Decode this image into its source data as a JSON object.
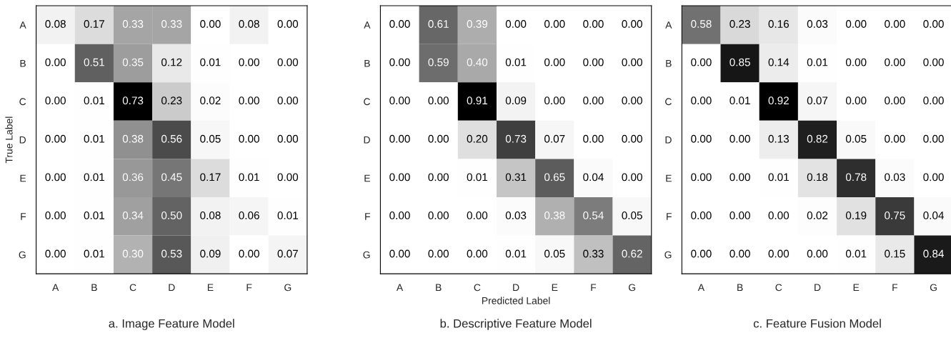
{
  "chart_data": [
    {
      "type": "heatmap",
      "ylabel": "True Label",
      "categories": [
        "A",
        "B",
        "C",
        "D",
        "E",
        "F",
        "G"
      ],
      "y_categories": [
        "A",
        "B",
        "C",
        "D",
        "E",
        "F",
        "G"
      ],
      "data_labels": true,
      "annotations": [
        "a. Image Feature Model"
      ],
      "cell_labels": [
        [
          "0.08",
          "0.17",
          "0.33",
          "0.33",
          "0.00",
          "0.08",
          "0.00"
        ],
        [
          "0.00",
          "0.51",
          "0.35",
          "0.12",
          "0.01",
          "0.00",
          "0.00"
        ],
        [
          "0.00",
          "0.01",
          "0.73",
          "0.23",
          "0.02",
          "0.00",
          "0.00"
        ],
        [
          "0.00",
          "0.01",
          "0.38",
          "0.56",
          "0.05",
          "0.00",
          "0.00"
        ],
        [
          "0.00",
          "0.01",
          "0.36",
          "0.45",
          "0.17",
          "0.01",
          "0.00"
        ],
        [
          "0.00",
          "0.01",
          "0.34",
          "0.50",
          "0.08",
          "0.06",
          "0.01"
        ],
        [
          "0.00",
          "0.01",
          "0.30",
          "0.53",
          "0.09",
          "0.00",
          "0.07"
        ]
      ],
      "cells": [
        [
          0.08,
          0.17,
          0.33,
          0.33,
          0.0,
          0.08,
          0.0
        ],
        [
          0.0,
          0.51,
          0.35,
          0.12,
          0.01,
          0.0,
          0.0
        ],
        [
          0.0,
          0.01,
          0.73,
          0.23,
          0.02,
          0.0,
          0.0
        ],
        [
          0.0,
          0.01,
          0.38,
          0.56,
          0.05,
          0.0,
          0.0
        ],
        [
          0.0,
          0.01,
          0.36,
          0.45,
          0.17,
          0.01,
          0.0
        ],
        [
          0.0,
          0.01,
          0.34,
          0.5,
          0.08,
          0.06,
          0.01
        ],
        [
          0.0,
          0.01,
          0.3,
          0.53,
          0.09,
          0.0,
          0.07
        ]
      ]
    },
    {
      "type": "heatmap",
      "xlabel": "Predicted Label",
      "categories": [
        "A",
        "B",
        "C",
        "D",
        "E",
        "F",
        "G"
      ],
      "y_categories": [
        "A",
        "B",
        "C",
        "D",
        "E",
        "F",
        "G"
      ],
      "data_labels": true,
      "annotations": [
        "b. Descriptive Feature Model"
      ],
      "cell_labels": [
        [
          "0.00",
          "0.61",
          "0.39",
          "0.00",
          "0.00",
          "0.00",
          "0.00"
        ],
        [
          "0.00",
          "0.59",
          "0.40",
          "0.01",
          "0.00",
          "0.00",
          "0.00"
        ],
        [
          "0.00",
          "0.00",
          "0.91",
          "0.09",
          "0.00",
          "0.00",
          "0.00"
        ],
        [
          "0.00",
          "0.00",
          "0.20",
          "0.73",
          "0.07",
          "0.00",
          "0.00"
        ],
        [
          "0.00",
          "0.00",
          "0.01",
          "0.31",
          "0.65",
          "0.04",
          "0.00"
        ],
        [
          "0.00",
          "0.00",
          "0.00",
          "0.03",
          "0.38",
          "0.54",
          "0.05"
        ],
        [
          "0.00",
          "0.00",
          "0.00",
          "0.01",
          "0.05",
          "0.33",
          "0.62"
        ]
      ],
      "cells": [
        [
          0.0,
          0.61,
          0.39,
          0.0,
          0.0,
          0.0,
          0.0
        ],
        [
          0.0,
          0.59,
          0.4,
          0.01,
          0.0,
          0.0,
          0.0
        ],
        [
          0.0,
          0.0,
          0.91,
          0.09,
          0.0,
          0.0,
          0.0
        ],
        [
          0.0,
          0.0,
          0.2,
          0.73,
          0.07,
          0.0,
          0.0
        ],
        [
          0.0,
          0.0,
          0.01,
          0.31,
          0.65,
          0.04,
          0.0
        ],
        [
          0.0,
          0.0,
          0.0,
          0.03,
          0.38,
          0.54,
          0.05
        ],
        [
          0.0,
          0.0,
          0.0,
          0.01,
          0.05,
          0.33,
          0.62
        ]
      ]
    },
    {
      "type": "heatmap",
      "categories": [
        "A",
        "B",
        "C",
        "D",
        "E",
        "F",
        "G"
      ],
      "y_categories": [
        "A",
        "B",
        "C",
        "D",
        "E",
        "F",
        "G"
      ],
      "data_labels": true,
      "annotations": [
        "c. Feature Fusion Model"
      ],
      "cell_labels": [
        [
          "0.58",
          "0.23",
          "0.16",
          "0.03",
          "0.00",
          "0.00",
          "0.00"
        ],
        [
          "0.00",
          "0.85",
          "0.14",
          "0.01",
          "0.00",
          "0.00",
          "0.00"
        ],
        [
          "0.00",
          "0.01",
          "0.92",
          "0.07",
          "0.00",
          "0.00",
          "0.00"
        ],
        [
          "0.00",
          "0.00",
          "0.13",
          "0.82",
          "0.05",
          "0.00",
          "0.00"
        ],
        [
          "0.00",
          "0.00",
          "0.01",
          "0.18",
          "0.78",
          "0.03",
          "0.00"
        ],
        [
          "0.00",
          "0.00",
          "0.00",
          "0.02",
          "0.19",
          "0.75",
          "0.04"
        ],
        [
          "0.00",
          "0.00",
          "0.00",
          "0.00",
          "0.01",
          "0.15",
          "0.84"
        ]
      ],
      "cells": [
        [
          0.58,
          0.23,
          0.16,
          0.03,
          0.0,
          0.0,
          0.0
        ],
        [
          0.0,
          0.85,
          0.14,
          0.01,
          0.0,
          0.0,
          0.0
        ],
        [
          0.0,
          0.01,
          0.92,
          0.07,
          0.0,
          0.0,
          0.0
        ],
        [
          0.0,
          0.0,
          0.13,
          0.82,
          0.05,
          0.0,
          0.0
        ],
        [
          0.0,
          0.0,
          0.01,
          0.18,
          0.78,
          0.03,
          0.0
        ],
        [
          0.0,
          0.0,
          0.0,
          0.02,
          0.19,
          0.75,
          0.04
        ],
        [
          0.0,
          0.0,
          0.0,
          0.0,
          0.01,
          0.15,
          0.84
        ]
      ]
    }
  ]
}
